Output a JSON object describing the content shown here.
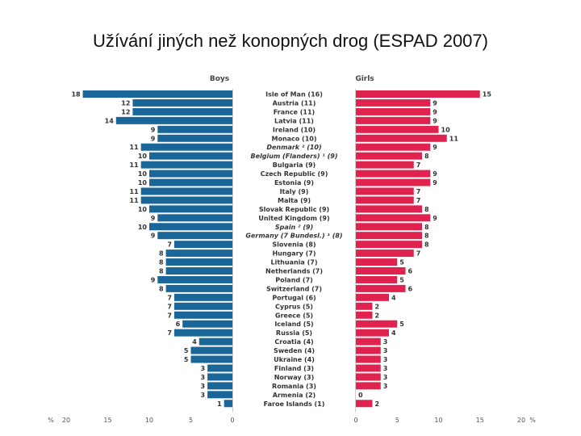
{
  "title": "Užívání jiných než konopných drog (ESPAD 2007)",
  "chart_data": {
    "type": "bar",
    "layout": "back-to-back horizontal",
    "series": [
      {
        "name": "Boys",
        "color": "#1a6699",
        "values": [
          18,
          12,
          12,
          14,
          9,
          9,
          11,
          10,
          11,
          10,
          10,
          11,
          11,
          10,
          9,
          10,
          9,
          7,
          8,
          8,
          8,
          9,
          8,
          7,
          7,
          7,
          6,
          7,
          4,
          5,
          5,
          3,
          3,
          3,
          3,
          1
        ]
      },
      {
        "name": "Girls",
        "color": "#e0234e",
        "values": [
          15,
          9,
          9,
          9,
          10,
          11,
          9,
          8,
          7,
          9,
          9,
          7,
          7,
          8,
          9,
          8,
          8,
          8,
          7,
          5,
          6,
          5,
          6,
          4,
          2,
          2,
          5,
          4,
          3,
          3,
          3,
          3,
          3,
          3,
          0,
          2
        ]
      }
    ],
    "categories": [
      {
        "label": "Isle of Man (16)",
        "italic": false
      },
      {
        "label": "Austria (11)",
        "italic": false
      },
      {
        "label": "France (11)",
        "italic": false
      },
      {
        "label": "Latvia (11)",
        "italic": false
      },
      {
        "label": "Ireland (10)",
        "italic": false
      },
      {
        "label": "Monaco (10)",
        "italic": false
      },
      {
        "label": "Denmark ² (10)",
        "italic": true
      },
      {
        "label": "Belgium (Flanders) ¹ (9)",
        "italic": true
      },
      {
        "label": "Bulgaria (9)",
        "italic": false
      },
      {
        "label": "Czech Republic (9)",
        "italic": false
      },
      {
        "label": "Estonia (9)",
        "italic": false
      },
      {
        "label": "Italy (9)",
        "italic": false
      },
      {
        "label": "Malta (9)",
        "italic": false
      },
      {
        "label": "Slovak Republic (9)",
        "italic": false
      },
      {
        "label": "United Kingdom (9)",
        "italic": false
      },
      {
        "label": "Spain ² (9)",
        "italic": true
      },
      {
        "label": "Germany (7 Bundesl.) ¹ (8)",
        "italic": true
      },
      {
        "label": "Slovenia (8)",
        "italic": false
      },
      {
        "label": "Hungary (7)",
        "italic": false
      },
      {
        "label": "Lithuania (7)",
        "italic": false
      },
      {
        "label": "Netherlands (7)",
        "italic": false
      },
      {
        "label": "Poland (7)",
        "italic": false
      },
      {
        "label": "Switzerland (7)",
        "italic": false
      },
      {
        "label": "Portugal (6)",
        "italic": false
      },
      {
        "label": "Cyprus (5)",
        "italic": false
      },
      {
        "label": "Greece (5)",
        "italic": false
      },
      {
        "label": "Iceland (5)",
        "italic": false
      },
      {
        "label": "Russia (5)",
        "italic": false
      },
      {
        "label": "Croatia (4)",
        "italic": false
      },
      {
        "label": "Sweden (4)",
        "italic": false
      },
      {
        "label": "Ukraine (4)",
        "italic": false
      },
      {
        "label": "Finland (3)",
        "italic": false
      },
      {
        "label": "Norway (3)",
        "italic": false
      },
      {
        "label": "Romania (3)",
        "italic": false
      },
      {
        "label": "Armenia (2)",
        "italic": false
      },
      {
        "label": "Faroe Islands (1)",
        "italic": false
      }
    ],
    "xlim": [
      0,
      20
    ],
    "boys_ticks": [
      "20",
      "15",
      "10",
      "5",
      "0"
    ],
    "girls_ticks": [
      "0",
      "5",
      "10",
      "15",
      "20"
    ],
    "unit_label": "%",
    "headers": {
      "left": "Boys",
      "right": "Girls"
    }
  }
}
